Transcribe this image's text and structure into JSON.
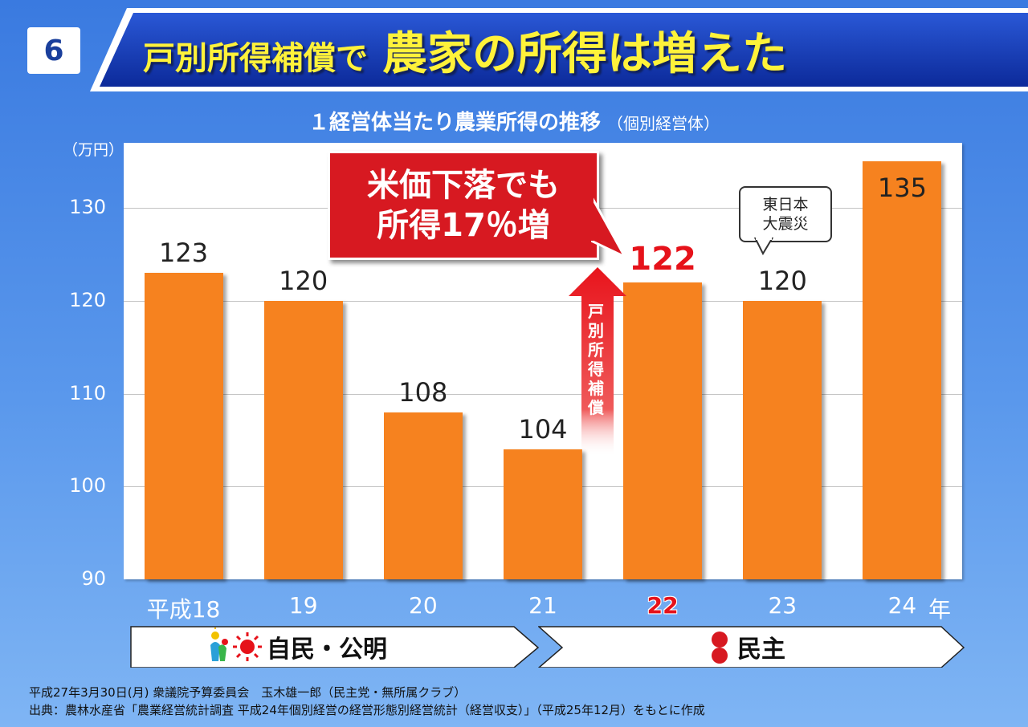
{
  "slide_number": "6",
  "title": {
    "part1": "戸別所得補償で",
    "part2": "農家の所得は増えた"
  },
  "subtitle": {
    "main": "１経営体当たり農業所得の推移",
    "note": "（個別経営体）"
  },
  "colors": {
    "bar": "#f6821f",
    "highlight": "#e6121a",
    "callout": "#d71921",
    "title_text": "#fff23a"
  },
  "chart_data": {
    "type": "bar",
    "unit_label": "（万円）",
    "categories": [
      "平成18",
      "19",
      "20",
      "21",
      "22",
      "23",
      "24"
    ],
    "x_unit": "年",
    "values": [
      123,
      120,
      108,
      104,
      122,
      120,
      135
    ],
    "value_labels": [
      "123",
      "120",
      "108",
      "104",
      "122",
      "120",
      "135"
    ],
    "highlight_index": 4,
    "ylim": [
      90,
      137
    ],
    "yticks": [
      "90",
      "100",
      "110",
      "120",
      "130"
    ],
    "ytick_values": [
      90,
      100,
      110,
      120,
      130
    ],
    "grid": true,
    "annotations": {
      "callout_lines": [
        "米価下落でも",
        "所得17％増"
      ],
      "arrow_text": "戸別所得補償",
      "bubble_lines": [
        "東日本",
        "大震災"
      ]
    }
  },
  "eras": [
    {
      "label": "自民・公明",
      "icon": "ldp-komeito-logo"
    },
    {
      "label": "民主",
      "icon": "dpj-logo"
    }
  ],
  "footer": {
    "line1": "平成27年3月30日(月) 衆議院予算委員会　玉木雄一郎（民主党・無所属クラブ）",
    "line2": "出典：農林水産省「農業経営統計調査 平成24年個別経営の経営形態別経営統計（経営収支）」（平成25年12月）をもとに作成"
  }
}
